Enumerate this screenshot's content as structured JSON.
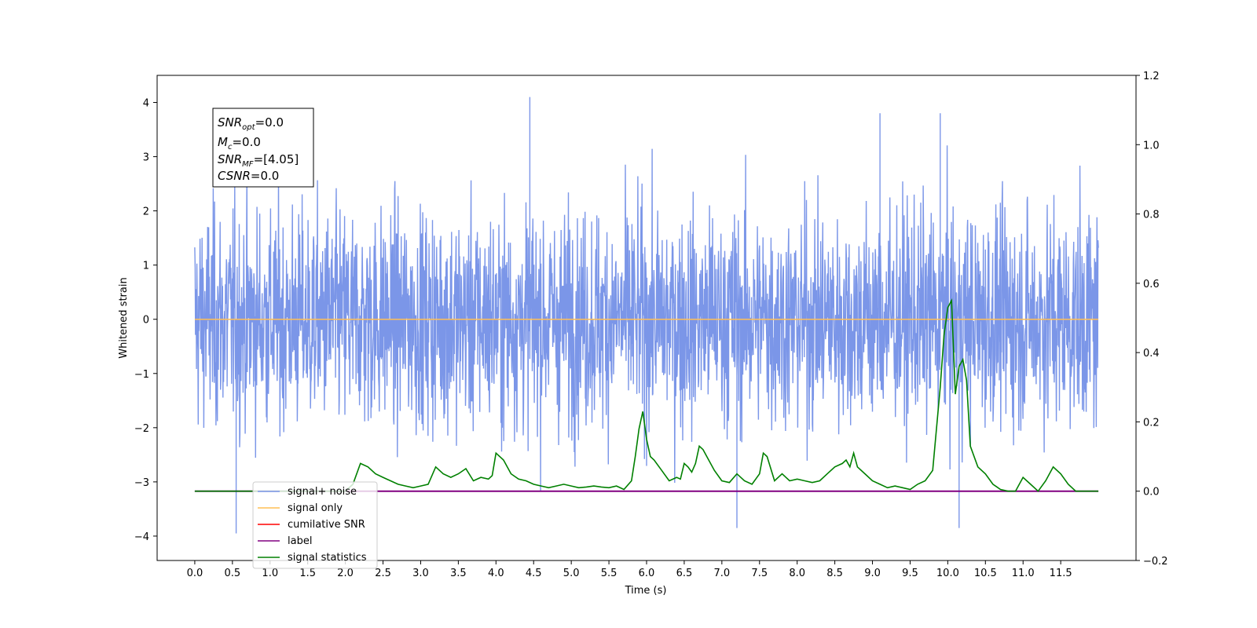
{
  "chart_data": {
    "type": "line",
    "xlabel": "Time (s)",
    "ylabel": "Whitened strain",
    "xlim": [
      -0.5,
      12.5
    ],
    "ylim": [
      -4.45,
      4.5
    ],
    "y2lim": [
      -0.2,
      1.2
    ],
    "x_ticks": [
      "0.0",
      "0.5",
      "1.0",
      "1.5",
      "2.0",
      "2.5",
      "3.0",
      "3.5",
      "4.0",
      "4.5",
      "5.0",
      "5.5",
      "6.0",
      "6.5",
      "7.0",
      "7.5",
      "8.0",
      "8.5",
      "9.0",
      "9.5",
      "10.0",
      "10.5",
      "11.0",
      "11.5"
    ],
    "y_ticks": [
      "4",
      "3",
      "2",
      "1",
      "0",
      "−1",
      "−2",
      "−3",
      "−4"
    ],
    "y2_ticks": [
      "1.2",
      "1.0",
      "0.8",
      "0.6",
      "0.4",
      "0.2",
      "0.0",
      "−0.2"
    ],
    "annotation": {
      "snr_opt": "=0.0",
      "mc": "=0.0",
      "snr_mf": "=[4.05]",
      "csnr": "=0.0"
    },
    "series": [
      {
        "name": "signal+ noise",
        "color": "#7b96e8",
        "axis": "left",
        "x_range": [
          0.0,
          12.0
        ],
        "approx_range": [
          -3.9,
          4.1
        ],
        "note_peaks": [
          [
            4.45,
            4.1
          ],
          [
            0.55,
            -3.95
          ],
          [
            7.2,
            -3.85
          ],
          [
            10.15,
            -3.85
          ],
          [
            9.1,
            3.8
          ],
          [
            9.9,
            3.8
          ]
        ]
      },
      {
        "name": "signal only",
        "color": "#ffbf55",
        "axis": "left",
        "x": [
          0.0,
          12.0
        ],
        "y": [
          0.0,
          0.0
        ]
      },
      {
        "name": "cumilative SNR",
        "color": "#ff0000",
        "axis": "right",
        "x": [],
        "y": []
      },
      {
        "name": "label",
        "color": "#800080",
        "axis": "right",
        "x": [
          0.0,
          12.0
        ],
        "y": [
          0.0,
          0.0
        ]
      },
      {
        "name": "signal statistics",
        "color": "#008000",
        "axis": "right",
        "x": [
          0.0,
          0.5,
          1.0,
          1.5,
          1.9,
          2.0,
          2.1,
          2.2,
          2.3,
          2.4,
          2.5,
          2.6,
          2.7,
          2.8,
          2.9,
          3.0,
          3.1,
          3.2,
          3.3,
          3.4,
          3.5,
          3.6,
          3.7,
          3.8,
          3.9,
          3.95,
          4.0,
          4.1,
          4.2,
          4.3,
          4.4,
          4.5,
          4.6,
          4.7,
          4.8,
          4.9,
          5.0,
          5.1,
          5.2,
          5.3,
          5.4,
          5.5,
          5.6,
          5.7,
          5.8,
          5.85,
          5.9,
          5.95,
          6.0,
          6.05,
          6.1,
          6.2,
          6.3,
          6.4,
          6.45,
          6.5,
          6.55,
          6.6,
          6.65,
          6.7,
          6.75,
          6.8,
          6.9,
          7.0,
          7.1,
          7.2,
          7.3,
          7.4,
          7.5,
          7.55,
          7.6,
          7.7,
          7.8,
          7.9,
          8.0,
          8.1,
          8.2,
          8.3,
          8.4,
          8.5,
          8.6,
          8.65,
          8.7,
          8.75,
          8.8,
          8.9,
          9.0,
          9.1,
          9.2,
          9.3,
          9.4,
          9.5,
          9.6,
          9.7,
          9.8,
          9.9,
          9.95,
          10.0,
          10.05,
          10.1,
          10.15,
          10.2,
          10.25,
          10.3,
          10.4,
          10.5,
          10.6,
          10.7,
          10.8,
          10.9,
          11.0,
          11.1,
          11.2,
          11.3,
          11.4,
          11.5,
          11.6,
          11.7,
          11.8,
          11.9,
          12.0
        ],
        "y": [
          0.0,
          0.0,
          0.0,
          0.0,
          0.0,
          0.0,
          0.02,
          0.08,
          0.07,
          0.05,
          0.04,
          0.03,
          0.02,
          0.015,
          0.01,
          0.015,
          0.02,
          0.07,
          0.05,
          0.04,
          0.05,
          0.065,
          0.03,
          0.04,
          0.035,
          0.045,
          0.11,
          0.09,
          0.05,
          0.035,
          0.03,
          0.02,
          0.015,
          0.01,
          0.015,
          0.02,
          0.015,
          0.01,
          0.012,
          0.015,
          0.012,
          0.01,
          0.015,
          0.005,
          0.03,
          0.1,
          0.18,
          0.23,
          0.15,
          0.1,
          0.09,
          0.06,
          0.03,
          0.04,
          0.035,
          0.08,
          0.07,
          0.055,
          0.08,
          0.13,
          0.12,
          0.1,
          0.06,
          0.03,
          0.025,
          0.05,
          0.03,
          0.02,
          0.05,
          0.11,
          0.1,
          0.03,
          0.05,
          0.03,
          0.035,
          0.03,
          0.025,
          0.03,
          0.05,
          0.07,
          0.08,
          0.09,
          0.07,
          0.11,
          0.07,
          0.05,
          0.03,
          0.02,
          0.01,
          0.015,
          0.01,
          0.005,
          0.02,
          0.03,
          0.06,
          0.3,
          0.45,
          0.53,
          0.55,
          0.28,
          0.36,
          0.38,
          0.32,
          0.13,
          0.07,
          0.05,
          0.02,
          0.005,
          0.0,
          0.0,
          0.04,
          0.02,
          0.0,
          0.03,
          0.07,
          0.05,
          0.02,
          0.0,
          0.0,
          0.0,
          0.0
        ]
      }
    ]
  }
}
